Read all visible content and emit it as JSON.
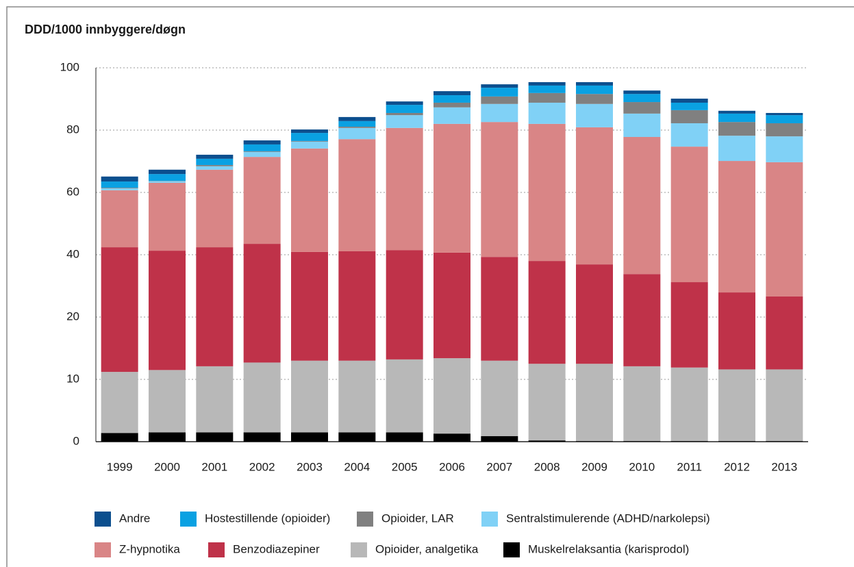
{
  "chart_data": {
    "type": "stacked-bar",
    "title": "DDD/1000 innbyggere/døgn",
    "categories": [
      "1999",
      "2000",
      "2001",
      "2002",
      "2003",
      "2004",
      "2005",
      "2006",
      "2007",
      "2008",
      "2009",
      "2010",
      "2011",
      "2012",
      "2013"
    ],
    "series": [
      {
        "name": "Andre",
        "color": "#0c4f8e",
        "values": [
          1.6,
          1.4,
          1.3,
          1.3,
          1.1,
          1.3,
          1.1,
          1.3,
          1.1,
          1.1,
          1.1,
          1.1,
          1.3,
          0.9,
          0.7
        ]
      },
      {
        "name": "Hostestillende (opioider)",
        "color": "#0aa1e2",
        "values": [
          2.0,
          2.2,
          2.0,
          2.2,
          2.6,
          1.8,
          2.6,
          2.4,
          2.8,
          2.4,
          2.7,
          2.6,
          2.4,
          2.7,
          2.6
        ]
      },
      {
        "name": "Opioider, LAR",
        "color": "#808080",
        "values": [
          0.2,
          0.1,
          0.4,
          0.2,
          0.2,
          0.4,
          0.7,
          1.5,
          2.4,
          3.1,
          3.2,
          3.7,
          4.2,
          4.4,
          4.2
        ]
      },
      {
        "name": "Sentralstimulerende (ADHD/narkolepsi)",
        "color": "#80d1f6",
        "values": [
          0.6,
          0.5,
          1.1,
          1.6,
          2.2,
          3.6,
          4.1,
          5.3,
          5.8,
          6.8,
          7.5,
          7.5,
          7.5,
          8.1,
          8.3
        ]
      },
      {
        "name": "Z-hypnotika",
        "color": "#d98586",
        "values": [
          18.3,
          21.8,
          24.9,
          27.9,
          33.2,
          36.0,
          39.2,
          41.3,
          43.3,
          44.0,
          44.0,
          44.0,
          43.5,
          42.2,
          43.1
        ]
      },
      {
        "name": "Benzodiazepiner",
        "color": "#bf3249",
        "values": [
          31.2,
          29.8,
          30.3,
          30.8,
          27.9,
          28.1,
          28.3,
          27.3,
          26.3,
          25.5,
          24.4,
          21.7,
          19.3,
          16.3,
          15.0
        ]
      },
      {
        "name": "Opioider, analgetika",
        "color": "#b8b8b8",
        "values": [
          9.8,
          10.0,
          10.6,
          11.2,
          11.5,
          11.5,
          11.7,
          12.1,
          12.1,
          12.3,
          12.4,
          12.0,
          11.8,
          11.5,
          11.5
        ]
      },
      {
        "name": "Muskelrelaksantia (karisprodol)",
        "color": "#000000",
        "values": [
          1.4,
          1.5,
          1.5,
          1.5,
          1.5,
          1.5,
          1.5,
          1.3,
          0.9,
          0.2,
          0.1,
          0.1,
          0.1,
          0.1,
          0.1
        ]
      }
    ],
    "ylim": [
      0,
      100
    ],
    "yticks": [
      0,
      10,
      20,
      40,
      60,
      80,
      100
    ],
    "grid": true
  }
}
